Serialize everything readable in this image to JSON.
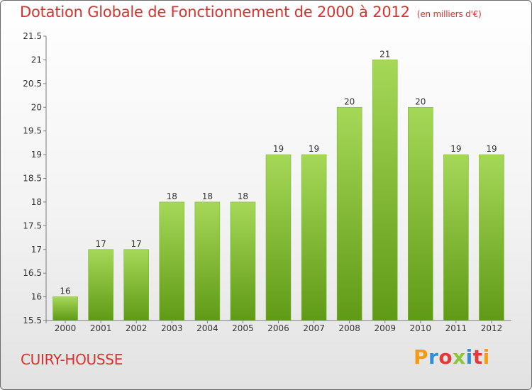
{
  "chart_data": {
    "type": "bar",
    "title": "Dotation Globale de Fonctionnement de 2000 à 2012",
    "subtitle": "(en milliers d'€)",
    "categories": [
      "2000",
      "2001",
      "2002",
      "2003",
      "2004",
      "2005",
      "2006",
      "2007",
      "2008",
      "2009",
      "2010",
      "2011",
      "2012"
    ],
    "values": [
      16,
      17,
      17,
      18,
      18,
      18,
      19,
      19,
      20,
      21,
      20,
      19,
      19
    ],
    "xlabel": "",
    "ylabel": "",
    "ylim": [
      15.5,
      21.5
    ],
    "yticks": [
      15.5,
      16,
      16.5,
      17,
      17.5,
      18,
      18.5,
      19,
      19.5,
      20,
      20.5,
      21,
      21.5
    ],
    "grid": false,
    "bar_color": "#8cc63f"
  },
  "footer": {
    "commune": "CUIRY-HOUSSE",
    "brand": "Proxiti"
  },
  "colors": {
    "title": "#d9322e",
    "bar_top": "#a6d858",
    "bar_bottom": "#5f9a16"
  }
}
